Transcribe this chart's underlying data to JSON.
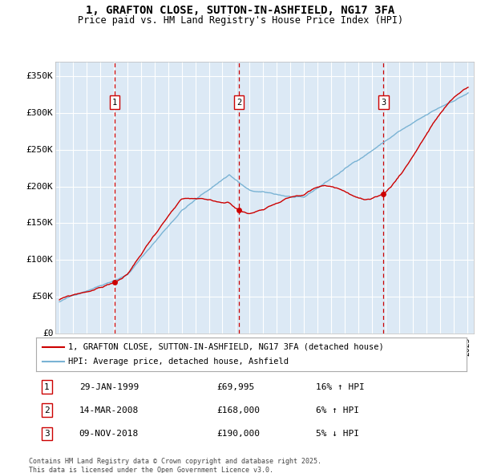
{
  "title": "1, GRAFTON CLOSE, SUTTON-IN-ASHFIELD, NG17 3FA",
  "subtitle": "Price paid vs. HM Land Registry's House Price Index (HPI)",
  "bg_color": "#dce9f5",
  "red_line_color": "#cc0000",
  "blue_line_color": "#7ab3d4",
  "vline_color": "#cc0000",
  "grid_color": "#ffffff",
  "ylim": [
    0,
    370000
  ],
  "yticks": [
    0,
    50000,
    100000,
    150000,
    200000,
    250000,
    300000,
    350000
  ],
  "ytick_labels": [
    "£0",
    "£50K",
    "£100K",
    "£150K",
    "£200K",
    "£250K",
    "£300K",
    "£350K"
  ],
  "legend_label_red": "1, GRAFTON CLOSE, SUTTON-IN-ASHFIELD, NG17 3FA (detached house)",
  "legend_label_blue": "HPI: Average price, detached house, Ashfield",
  "transactions": [
    {
      "num": 1,
      "date": "29-JAN-1999",
      "price": "£69,995",
      "hpi": "16% ↑ HPI",
      "x_year": 1999.08
    },
    {
      "num": 2,
      "date": "14-MAR-2008",
      "price": "£168,000",
      "hpi": "6% ↑ HPI",
      "x_year": 2008.21
    },
    {
      "num": 3,
      "date": "09-NOV-2018",
      "price": "£190,000",
      "hpi": "5% ↓ HPI",
      "x_year": 2018.86
    }
  ],
  "footnote": "Contains HM Land Registry data © Crown copyright and database right 2025.\nThis data is licensed under the Open Government Licence v3.0.",
  "xlim_start": 1994.7,
  "xlim_end": 2025.5,
  "sale1_y": 69995,
  "sale2_y": 168000,
  "sale3_y": 190000
}
